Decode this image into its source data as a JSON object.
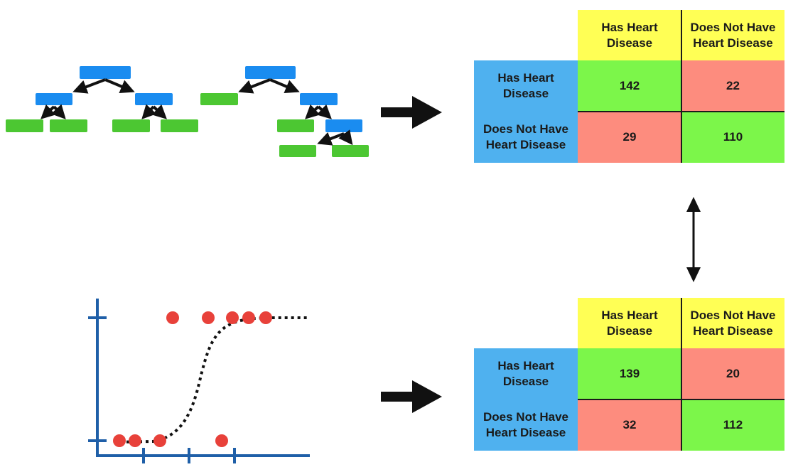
{
  "colors": {
    "tree_node_blue": "#1a8cf0",
    "tree_leaf_green": "#4cc732",
    "header_yellow": "#ffff55",
    "row_label_blue": "#4fb1ef",
    "correct_green": "#7cf64a",
    "error_red": "#fd8c7e",
    "axis_blue": "#1f5fa8",
    "point_red": "#e8413a"
  },
  "top_matrix": {
    "col_headers": [
      "Has Heart Disease",
      "Does Not Have Heart Disease"
    ],
    "row_headers": [
      "Has Heart Disease",
      "Does Not Have Heart Disease"
    ],
    "values": [
      [
        "142",
        "22"
      ],
      [
        "29",
        "110"
      ]
    ]
  },
  "bottom_matrix": {
    "col_headers": [
      "Has Heart Disease",
      "Does Not Have Heart Disease"
    ],
    "row_headers": [
      "Has Heart Disease",
      "Does Not Have Heart Disease"
    ],
    "values": [
      [
        "139",
        "20"
      ],
      [
        "32",
        "112"
      ]
    ]
  },
  "icons": {
    "top_arrow": "right-arrow-icon",
    "bottom_arrow": "right-arrow-icon",
    "compare_arrow": "double-vertical-arrow-icon"
  }
}
